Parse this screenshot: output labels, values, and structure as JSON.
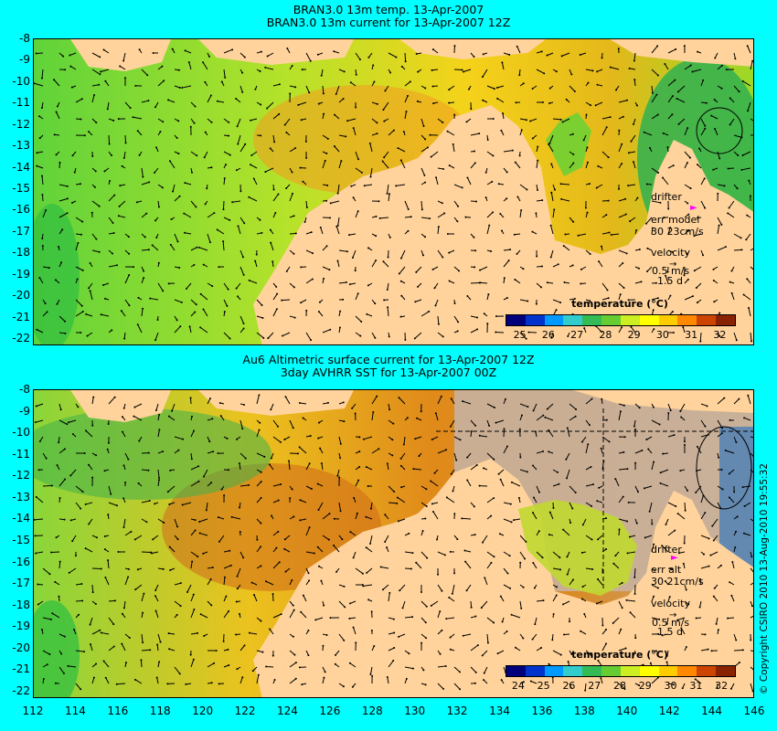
{
  "top_panel": {
    "title_line1": "BRAN3.0 13m temp. 13-Apr-2007",
    "title_line2": "BRAN3.0 13m current for 13-Apr-2007 12Z",
    "drifter_label": "drifter",
    "err_label": "err model",
    "err_value": "30 23cm/s",
    "velocity_label": "velocity",
    "velocity_scale": "0.5 m/s",
    "velocity_time": "1.5 d",
    "colorbar_title": "temperature (°C)",
    "colorbar_ticks": [
      "25",
      "26",
      "27",
      "28",
      "29",
      "30",
      "31",
      "32"
    ]
  },
  "bottom_panel": {
    "title_line1": "Au6 Altimetric surface current for 13-Apr-2007 12Z",
    "title_line2": "3day AVHRR SST for 13-Apr-2007 00Z",
    "drifter_label": "drifter",
    "err_label": "err alt",
    "err_value": "30 21cm/s",
    "velocity_label": "velocity",
    "velocity_scale": "0.5 m/s",
    "velocity_time": "1.5 d",
    "colorbar_title": "temperature (°C)",
    "colorbar_ticks": [
      "24",
      "25",
      "26",
      "27",
      "28",
      "29",
      "30",
      "31",
      "32"
    ]
  },
  "y_axis_labels": [
    "-8",
    "-9",
    "-10",
    "-11",
    "-12",
    "-13",
    "-14",
    "-15",
    "-16",
    "-17",
    "-18",
    "-19",
    "-20",
    "-21",
    "-22"
  ],
  "x_axis_labels": [
    "112",
    "114",
    "116",
    "118",
    "120",
    "122",
    "124",
    "126",
    "128",
    "130",
    "132",
    "134",
    "136",
    "138",
    "140",
    "142",
    "144",
    "146"
  ],
  "copyright": "© Copyright CSIRO 2010   13-Aug-2010 19:55:32",
  "colors": {
    "background": "#00ffff",
    "land": "#ffd39b",
    "no_data": "#c8b09a",
    "drifter": "#ff00ff",
    "colorbar": [
      "#00007a",
      "#0033cc",
      "#0099ff",
      "#33cccc",
      "#33bb55",
      "#66cc33",
      "#ccee22",
      "#ffff00",
      "#ffcc00",
      "#ff8800",
      "#cc4400",
      "#882200"
    ]
  }
}
